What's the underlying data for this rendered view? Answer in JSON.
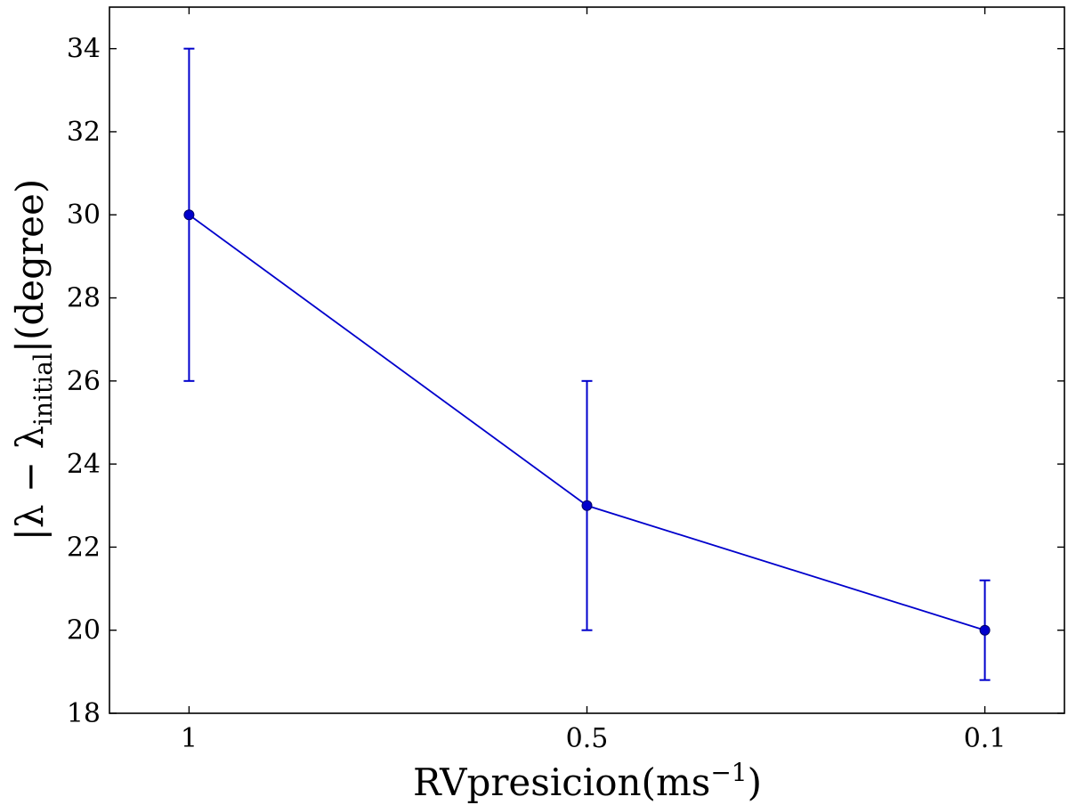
{
  "chart_data": {
    "type": "line",
    "title": "",
    "xlabel": {
      "main": "RVpresicion(ms",
      "sup": "−1",
      "tail": ")"
    },
    "ylabel": {
      "prefix": "|λ − λ",
      "sub": "initial",
      "suffix": "|(degree)"
    },
    "categories": [
      "1",
      "0.5",
      "0.1"
    ],
    "ylim": [
      18,
      35
    ],
    "yticks": [
      "18",
      "20",
      "22",
      "24",
      "26",
      "28",
      "30",
      "32",
      "34"
    ],
    "grid": false,
    "legend": "none",
    "series": [
      {
        "values": [
          30,
          23,
          20
        ],
        "err_low": [
          4,
          3,
          1.2
        ],
        "err_high": [
          4,
          3,
          1.2
        ],
        "color": "#0000cc"
      }
    ]
  }
}
